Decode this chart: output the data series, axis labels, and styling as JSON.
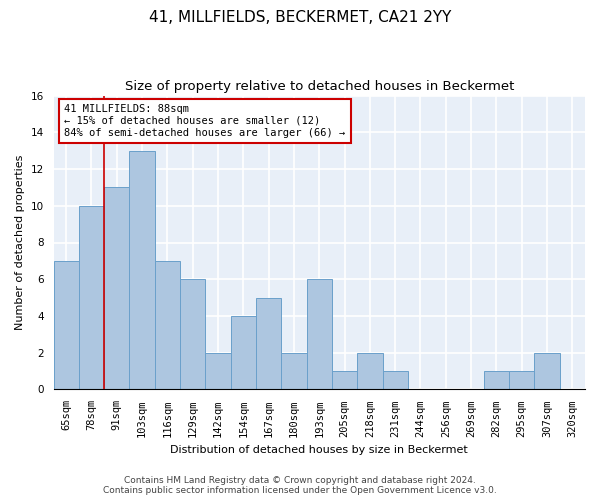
{
  "title": "41, MILLFIELDS, BECKERMET, CA21 2YY",
  "subtitle": "Size of property relative to detached houses in Beckermet",
  "xlabel": "Distribution of detached houses by size in Beckermet",
  "ylabel": "Number of detached properties",
  "categories": [
    "65sqm",
    "78sqm",
    "91sqm",
    "103sqm",
    "116sqm",
    "129sqm",
    "142sqm",
    "154sqm",
    "167sqm",
    "180sqm",
    "193sqm",
    "205sqm",
    "218sqm",
    "231sqm",
    "244sqm",
    "256sqm",
    "269sqm",
    "282sqm",
    "295sqm",
    "307sqm",
    "320sqm"
  ],
  "values": [
    7,
    10,
    11,
    13,
    7,
    6,
    2,
    4,
    5,
    2,
    6,
    1,
    2,
    1,
    0,
    0,
    0,
    1,
    1,
    2,
    0
  ],
  "bar_color": "#adc6e0",
  "bar_edge_color": "#6aa0cb",
  "red_line_x": 1.5,
  "annotation_text": "41 MILLFIELDS: 88sqm\n← 15% of detached houses are smaller (12)\n84% of semi-detached houses are larger (66) →",
  "annotation_box_color": "#cc0000",
  "ylim": [
    0,
    16
  ],
  "yticks": [
    0,
    2,
    4,
    6,
    8,
    10,
    12,
    14,
    16
  ],
  "footer_line1": "Contains HM Land Registry data © Crown copyright and database right 2024.",
  "footer_line2": "Contains public sector information licensed under the Open Government Licence v3.0.",
  "background_color": "#e8eff8",
  "grid_color": "#ffffff",
  "title_fontsize": 11,
  "subtitle_fontsize": 9.5,
  "axis_label_fontsize": 8,
  "tick_fontsize": 7.5,
  "annotation_fontsize": 7.5,
  "footer_fontsize": 6.5
}
